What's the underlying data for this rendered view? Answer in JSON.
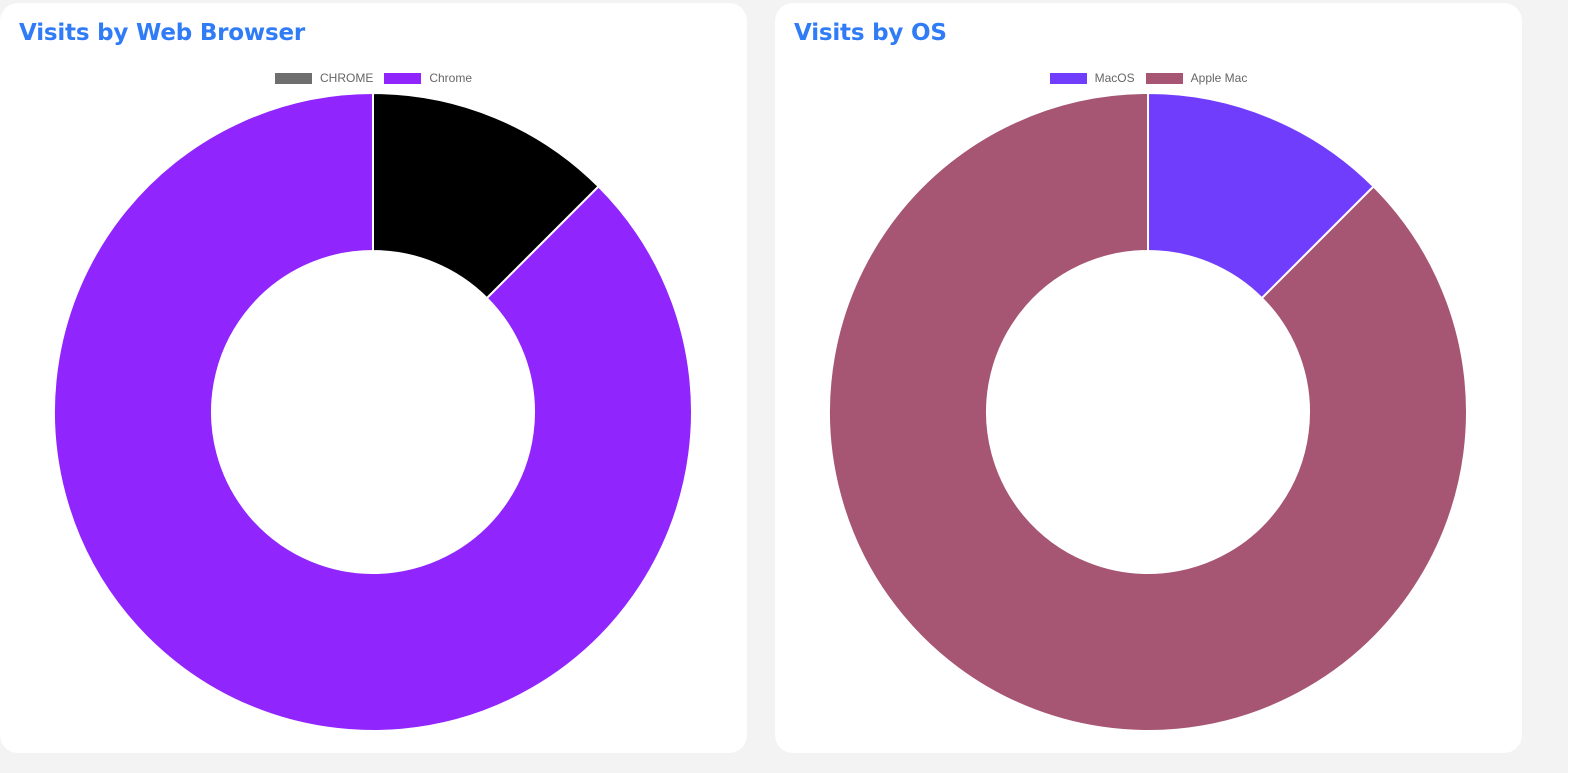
{
  "charts": [
    {
      "title": "Visits by Web Browser"
    },
    {
      "title": "Visits by OS"
    }
  ],
  "chart_data": [
    {
      "type": "pie",
      "variant": "doughnut",
      "title": "Visits by Web Browser",
      "legend_position": "top",
      "categories": [
        "CHROME",
        "Chrome"
      ],
      "values": [
        1,
        7
      ],
      "colors": [
        "#000000",
        "#9125fd"
      ],
      "legend_colors": [
        "#6e6e6e",
        "#9125fd"
      ]
    },
    {
      "type": "pie",
      "variant": "doughnut",
      "title": "Visits by OS",
      "legend_position": "top",
      "categories": [
        "MacOS",
        "Apple Mac"
      ],
      "values": [
        1,
        7
      ],
      "colors": [
        "#713dfc",
        "#a65573"
      ],
      "legend_colors": [
        "#713dfc",
        "#a65573"
      ]
    }
  ]
}
